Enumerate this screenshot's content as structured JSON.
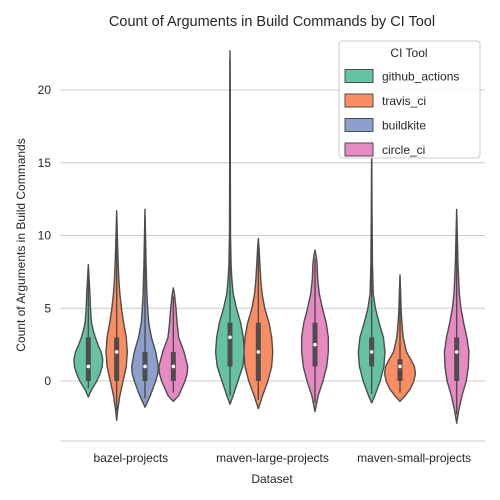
{
  "chart_data": {
    "type": "violin",
    "title": "Count of Arguments in Build Commands by CI Tool",
    "xlabel": "Dataset",
    "ylabel": "Count of Arguments in Build Commands",
    "categories": [
      "bazel-projects",
      "maven-large-projects",
      "maven-small-projects"
    ],
    "ylim": [
      -4.2,
      24.2
    ],
    "yticks": [
      0,
      5,
      10,
      15,
      20
    ],
    "grid": "horizontal",
    "legend": {
      "title": "CI Tool",
      "placement": "top-right"
    },
    "series": [
      {
        "name": "github_actions",
        "color": "#66c2a5",
        "violins": [
          {
            "category": "bazel-projects",
            "min": -1.1,
            "max": 8.0,
            "q1": 0,
            "median": 1,
            "q3": 3,
            "profile": [
              [
                -1.1,
                0
              ],
              [
                -0.6,
                0.06
              ],
              [
                0,
                0.16
              ],
              [
                0.5,
                0.22
              ],
              [
                1,
                0.26
              ],
              [
                1.5,
                0.27
              ],
              [
                2,
                0.24
              ],
              [
                2.5,
                0.18
              ],
              [
                3,
                0.13
              ],
              [
                3.5,
                0.09
              ],
              [
                4,
                0.06
              ],
              [
                5,
                0.04
              ],
              [
                6,
                0.03
              ],
              [
                7,
                0.015
              ],
              [
                8,
                0
              ]
            ]
          },
          {
            "category": "maven-large-projects",
            "min": -1.6,
            "max": 22.7,
            "q1": 1,
            "median": 3,
            "q3": 4,
            "profile": [
              [
                -1.6,
                0
              ],
              [
                -1,
                0.06
              ],
              [
                0,
                0.15
              ],
              [
                1,
                0.24
              ],
              [
                2,
                0.27
              ],
              [
                3,
                0.25
              ],
              [
                4,
                0.2
              ],
              [
                5,
                0.12
              ],
              [
                6,
                0.06
              ],
              [
                7,
                0.035
              ],
              [
                8,
                0.02
              ],
              [
                10,
                0.01
              ],
              [
                15,
                0.006
              ],
              [
                20,
                0.004
              ],
              [
                22.7,
                0
              ]
            ]
          },
          {
            "category": "maven-small-projects",
            "min": -1.5,
            "max": 16.5,
            "q1": 1,
            "median": 2,
            "q3": 3,
            "profile": [
              [
                -1.5,
                0
              ],
              [
                -1,
                0.06
              ],
              [
                0,
                0.16
              ],
              [
                1,
                0.23
              ],
              [
                2,
                0.25
              ],
              [
                3,
                0.22
              ],
              [
                4,
                0.14
              ],
              [
                5,
                0.07
              ],
              [
                6,
                0.03
              ],
              [
                8,
                0.015
              ],
              [
                12,
                0.006
              ],
              [
                16.5,
                0
              ]
            ]
          }
        ]
      },
      {
        "name": "travis_ci",
        "color": "#fc8d62",
        "violins": [
          {
            "category": "bazel-projects",
            "min": -2.7,
            "max": 11.7,
            "q1": 0,
            "median": 2,
            "q3": 3,
            "profile": [
              [
                -2.7,
                0
              ],
              [
                -2,
                0.02
              ],
              [
                -1,
                0.06
              ],
              [
                0,
                0.12
              ],
              [
                1,
                0.18
              ],
              [
                2,
                0.2
              ],
              [
                3,
                0.18
              ],
              [
                4,
                0.13
              ],
              [
                5,
                0.09
              ],
              [
                6,
                0.06
              ],
              [
                7,
                0.04
              ],
              [
                9,
                0.02
              ],
              [
                11.7,
                0
              ]
            ]
          },
          {
            "category": "maven-large-projects",
            "min": -1.9,
            "max": 9.8,
            "q1": 0,
            "median": 2,
            "q3": 4,
            "profile": [
              [
                -1.9,
                0
              ],
              [
                -1,
                0.08
              ],
              [
                0,
                0.18
              ],
              [
                1,
                0.25
              ],
              [
                2,
                0.27
              ],
              [
                3,
                0.25
              ],
              [
                4,
                0.2
              ],
              [
                5,
                0.12
              ],
              [
                6,
                0.07
              ],
              [
                7,
                0.045
              ],
              [
                8,
                0.03
              ],
              [
                9,
                0.015
              ],
              [
                9.8,
                0
              ]
            ]
          },
          {
            "category": "maven-small-projects",
            "min": -1.4,
            "max": 7.3,
            "q1": 0,
            "median": 1,
            "q3": 1.5,
            "profile": [
              [
                -1.4,
                0
              ],
              [
                -1,
                0.1
              ],
              [
                -0.5,
                0.2
              ],
              [
                0,
                0.26
              ],
              [
                0.5,
                0.29
              ],
              [
                1,
                0.27
              ],
              [
                1.5,
                0.2
              ],
              [
                2,
                0.12
              ],
              [
                3,
                0.06
              ],
              [
                4,
                0.035
              ],
              [
                5,
                0.02
              ],
              [
                6,
                0.012
              ],
              [
                7.3,
                0
              ]
            ]
          }
        ]
      },
      {
        "name": "buildkite",
        "color": "#8da0cb",
        "violins": [
          {
            "category": "bazel-projects",
            "min": -1.8,
            "max": 11.8,
            "q1": 0,
            "median": 1,
            "q3": 2,
            "profile": [
              [
                -1.8,
                0
              ],
              [
                -1,
                0.1
              ],
              [
                0,
                0.2
              ],
              [
                0.5,
                0.24
              ],
              [
                1,
                0.25
              ],
              [
                2,
                0.2
              ],
              [
                3,
                0.12
              ],
              [
                4,
                0.07
              ],
              [
                5,
                0.05
              ],
              [
                6,
                0.035
              ],
              [
                8,
                0.02
              ],
              [
                10,
                0.01
              ],
              [
                11.8,
                0
              ]
            ]
          }
        ]
      },
      {
        "name": "circle_ci",
        "color": "#e78ac3",
        "violins": [
          {
            "category": "bazel-projects",
            "min": -1.4,
            "max": 6.4,
            "q1": 0,
            "median": 1,
            "q3": 2,
            "profile": [
              [
                -1.4,
                0
              ],
              [
                -1,
                0.1
              ],
              [
                0,
                0.22
              ],
              [
                0.5,
                0.26
              ],
              [
                1,
                0.27
              ],
              [
                2,
                0.2
              ],
              [
                3,
                0.1
              ],
              [
                4,
                0.07
              ],
              [
                5,
                0.05
              ],
              [
                6,
                0.02
              ],
              [
                6.4,
                0
              ]
            ]
          },
          {
            "category": "maven-large-projects",
            "min": -2.1,
            "max": 9.0,
            "q1": 1,
            "median": 2.5,
            "q3": 4,
            "profile": [
              [
                -2.1,
                0
              ],
              [
                -1,
                0.06
              ],
              [
                0,
                0.15
              ],
              [
                1,
                0.22
              ],
              [
                2,
                0.25
              ],
              [
                3,
                0.25
              ],
              [
                4,
                0.21
              ],
              [
                5,
                0.14
              ],
              [
                6,
                0.08
              ],
              [
                7,
                0.05
              ],
              [
                8,
                0.04
              ],
              [
                8.5,
                0.025
              ],
              [
                9,
                0
              ]
            ]
          },
          {
            "category": "maven-small-projects",
            "min": -2.9,
            "max": 11.8,
            "q1": 0,
            "median": 2,
            "q3": 3,
            "profile": [
              [
                -2.9,
                0
              ],
              [
                -2,
                0.04
              ],
              [
                -1,
                0.1
              ],
              [
                0,
                0.18
              ],
              [
                1,
                0.22
              ],
              [
                2,
                0.23
              ],
              [
                3,
                0.19
              ],
              [
                4,
                0.13
              ],
              [
                5,
                0.08
              ],
              [
                6,
                0.05
              ],
              [
                8,
                0.025
              ],
              [
                10,
                0.012
              ],
              [
                11.8,
                0
              ]
            ]
          }
        ]
      }
    ]
  }
}
